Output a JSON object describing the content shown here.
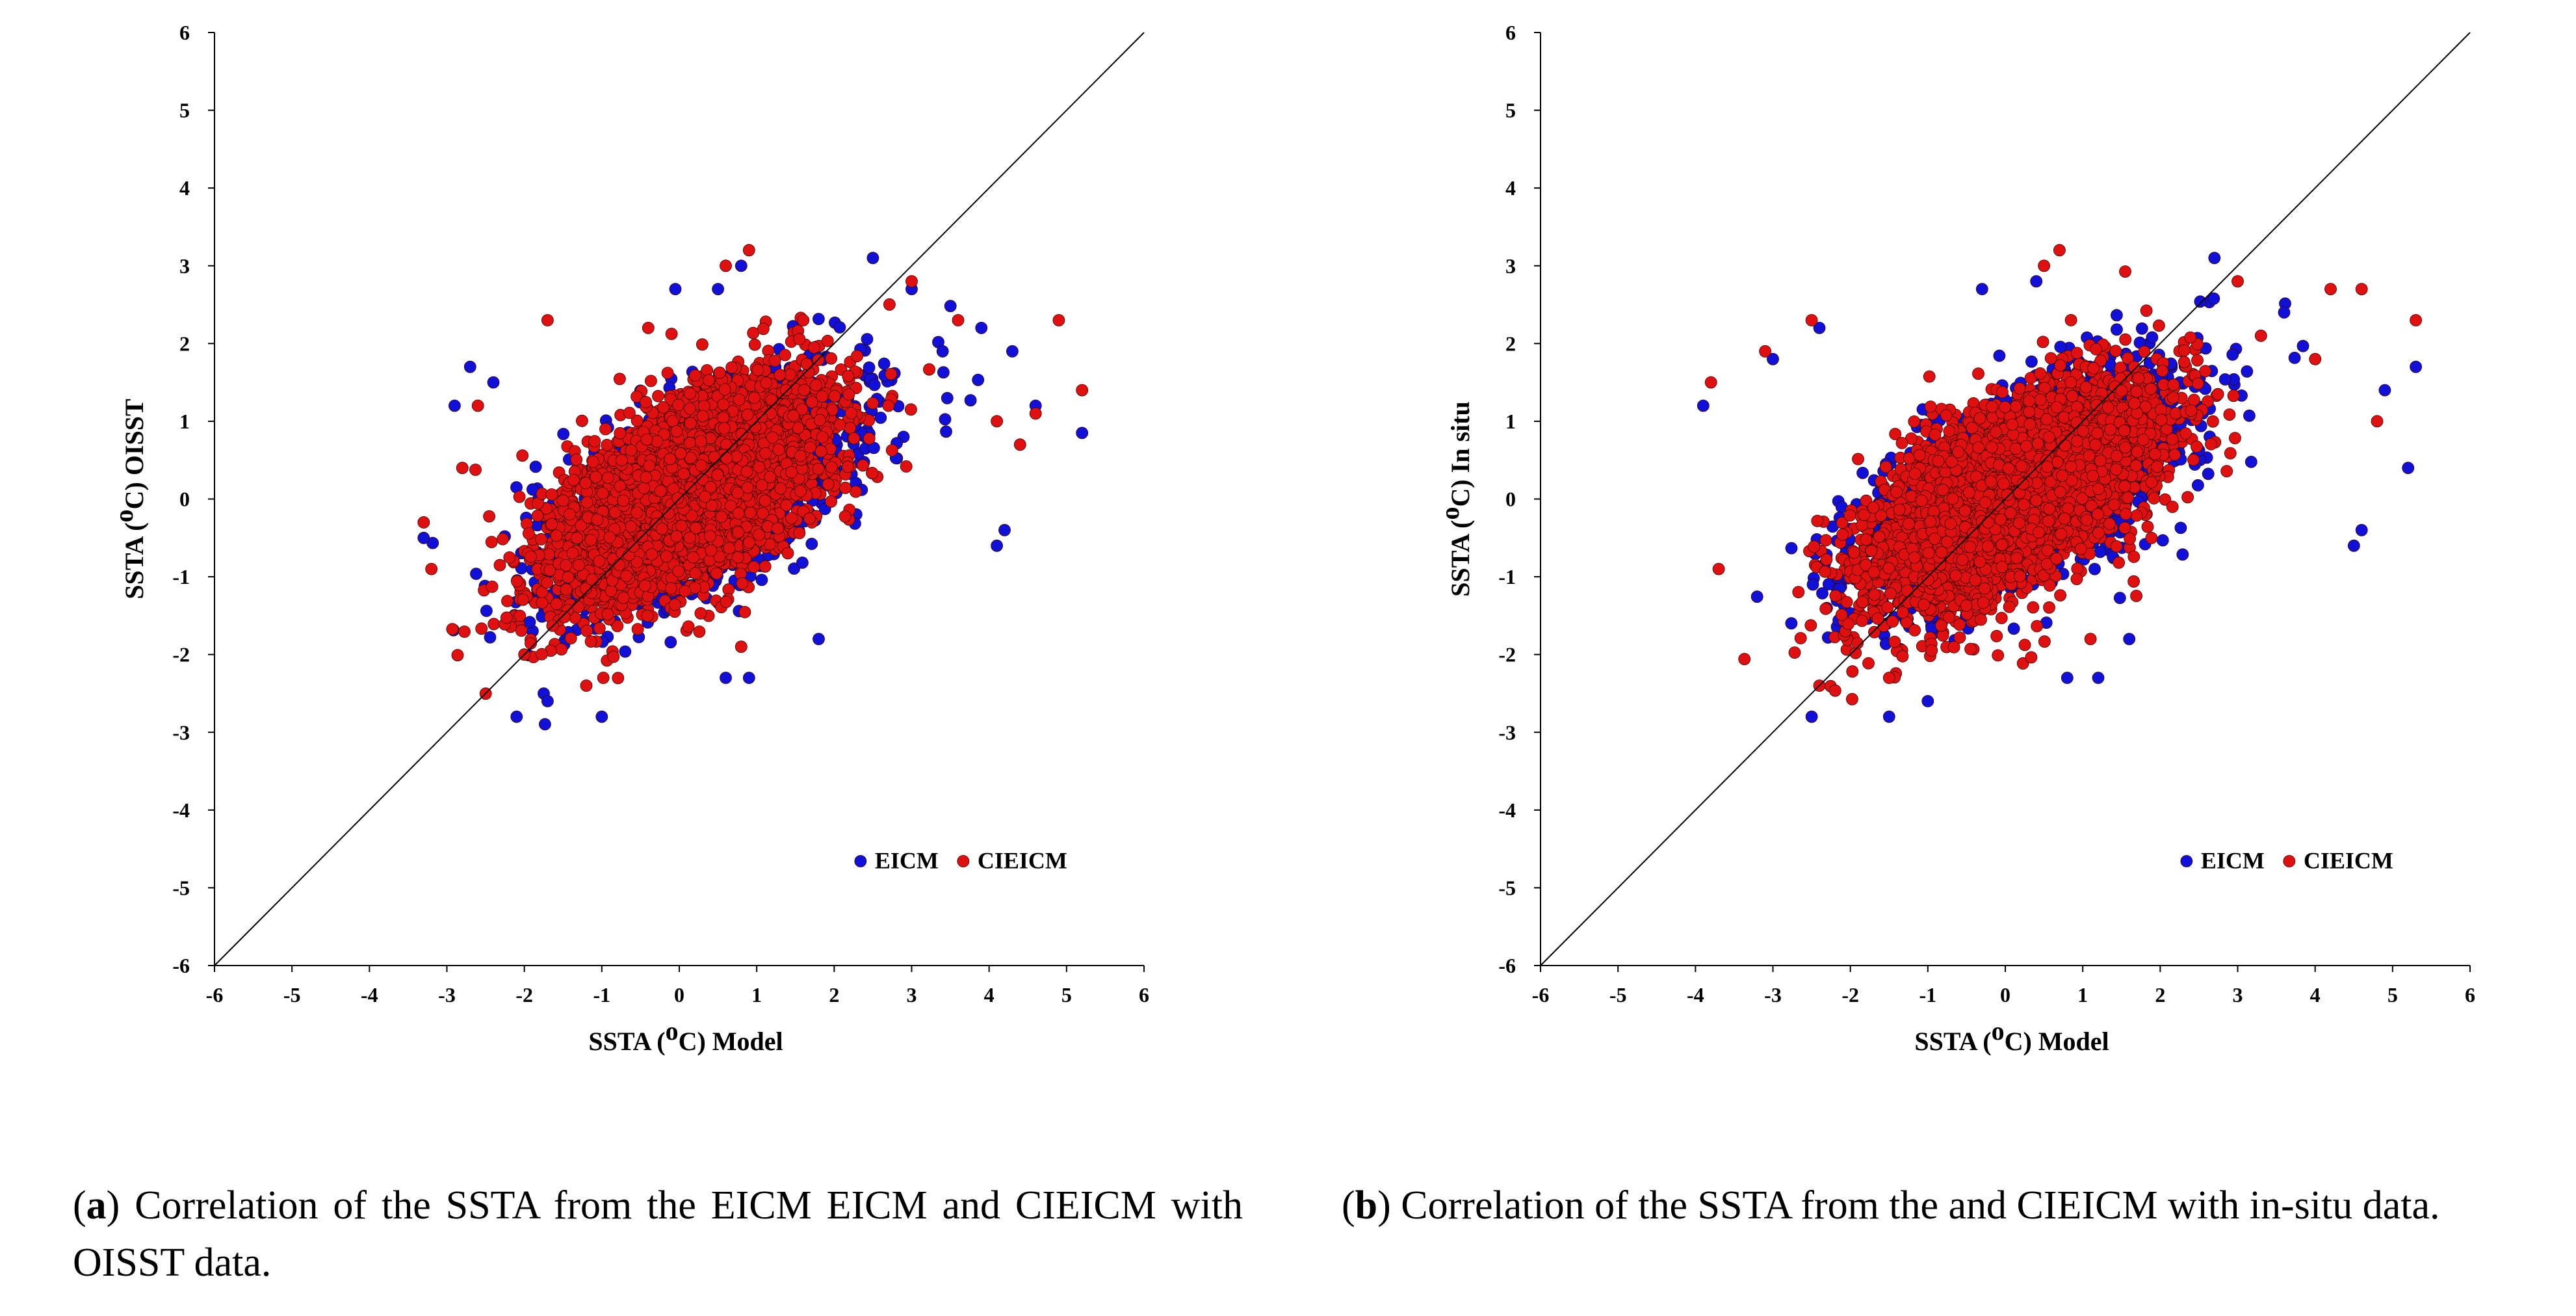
{
  "chart_data": [
    {
      "id": "a",
      "type": "scatter",
      "title": "",
      "xlabel_parts": [
        "SSTA (",
        "o",
        "C) Model"
      ],
      "ylabel_parts": [
        "SSTA (",
        "o",
        "C) OISST"
      ],
      "xlim": [
        -6,
        6
      ],
      "ylim": [
        -6,
        6
      ],
      "xticks": [
        "-6",
        "-5",
        "-4",
        "-3",
        "-2",
        "-1",
        "0",
        "1",
        "2",
        "3",
        "4",
        "5",
        "6"
      ],
      "yticks": [
        "-6",
        "-5",
        "-4",
        "-3",
        "-2",
        "-1",
        "0",
        "1",
        "2",
        "3",
        "4",
        "5",
        "6"
      ],
      "grid": false,
      "reference_line": {
        "x": [
          -6,
          6
        ],
        "y": [
          -6,
          6
        ]
      },
      "legend_position": "bottom-right",
      "series": [
        {
          "name": "EICM",
          "color": "#1010d8",
          "cluster": {
            "center": [
              0.3,
              0.1
            ],
            "slope": 0.62,
            "sd_along": 1.05,
            "sd_across": 0.48,
            "count": 2600
          },
          "points": [
            [
              -3.3,
              -0.5
            ],
            [
              -2.7,
              1.7
            ],
            [
              -2.9,
              1.2
            ],
            [
              -2.1,
              -2.8
            ],
            [
              -1.7,
              -2.6
            ],
            [
              -1.0,
              -2.8
            ],
            [
              2.5,
              3.1
            ],
            [
              0.8,
              3.0
            ],
            [
              -0.05,
              2.7
            ],
            [
              0.5,
              2.7
            ],
            [
              4.1,
              -0.6
            ],
            [
              4.2,
              -0.4
            ],
            [
              5.2,
              0.85
            ],
            [
              4.6,
              1.2
            ],
            [
              3.9,
              2.2
            ],
            [
              4.3,
              1.9
            ],
            [
              0.6,
              -2.3
            ],
            [
              0.9,
              -2.3
            ],
            [
              1.8,
              -1.8
            ],
            [
              -2.4,
              1.5
            ],
            [
              3.0,
              2.7
            ],
            [
              3.4,
              1.9
            ]
          ]
        },
        {
          "name": "CIEICM",
          "color": "#e01010",
          "cluster": {
            "center": [
              0.1,
              0.05
            ],
            "slope": 0.65,
            "sd_along": 1.0,
            "sd_across": 0.5,
            "count": 4200
          },
          "points": [
            [
              -3.3,
              -0.3
            ],
            [
              -3.2,
              -0.9
            ],
            [
              -2.6,
              1.2
            ],
            [
              -1.7,
              2.3
            ],
            [
              0.9,
              3.2
            ],
            [
              0.6,
              3.0
            ],
            [
              3.0,
              2.8
            ],
            [
              4.9,
              2.3
            ],
            [
              5.2,
              1.4
            ],
            [
              4.1,
              1.0
            ],
            [
              4.6,
              1.1
            ],
            [
              4.4,
              0.7
            ],
            [
              -2.0,
              -2.0
            ],
            [
              -1.2,
              -2.4
            ],
            [
              0.8,
              -1.9
            ],
            [
              2.7,
              1.2
            ],
            [
              3.6,
              2.3
            ],
            [
              -2.8,
              0.4
            ],
            [
              1.6,
              2.3
            ],
            [
              -0.4,
              2.2
            ]
          ]
        }
      ]
    },
    {
      "id": "b",
      "type": "scatter",
      "title": "",
      "xlabel_parts": [
        "SSTA (",
        "o",
        "C) Model"
      ],
      "ylabel_parts": [
        "SSTA (",
        "o",
        "C) In situ"
      ],
      "xlim": [
        -6,
        6
      ],
      "ylim": [
        -6,
        6
      ],
      "xticks": [
        "-6",
        "-5",
        "-4",
        "-3",
        "-2",
        "-1",
        "0",
        "1",
        "2",
        "3",
        "4",
        "5",
        "6"
      ],
      "yticks": [
        "-6",
        "-5",
        "-4",
        "-3",
        "-2",
        "-1",
        "0",
        "1",
        "2",
        "3",
        "4",
        "5",
        "6"
      ],
      "grid": false,
      "reference_line": {
        "x": [
          -6,
          6
        ],
        "y": [
          -6,
          6
        ]
      },
      "legend_position": "bottom-right",
      "series": [
        {
          "name": "EICM",
          "color": "#1010d8",
          "cluster": {
            "center": [
              0.2,
              0.1
            ],
            "slope": 0.6,
            "sd_along": 1.1,
            "sd_across": 0.5,
            "count": 2600
          },
          "points": [
            [
              -3.9,
              1.2
            ],
            [
              -3.0,
              1.8
            ],
            [
              -2.5,
              -2.8
            ],
            [
              -1.5,
              -2.8
            ],
            [
              -1.0,
              -2.6
            ],
            [
              2.7,
              3.1
            ],
            [
              0.4,
              2.8
            ],
            [
              -0.3,
              2.7
            ],
            [
              4.5,
              -0.6
            ],
            [
              4.6,
              -0.4
            ],
            [
              5.3,
              1.7
            ],
            [
              5.2,
              0.4
            ],
            [
              4.9,
              1.4
            ],
            [
              0.8,
              -2.3
            ],
            [
              1.2,
              -2.3
            ],
            [
              1.6,
              -1.8
            ],
            [
              3.6,
              2.4
            ],
            [
              -2.4,
              2.2
            ]
          ]
        },
        {
          "name": "CIEICM",
          "color": "#e01010",
          "cluster": {
            "center": [
              0.1,
              0.05
            ],
            "slope": 0.65,
            "sd_along": 1.05,
            "sd_across": 0.5,
            "count": 4200
          },
          "points": [
            [
              -3.8,
              1.5
            ],
            [
              -3.1,
              1.9
            ],
            [
              -3.7,
              -0.9
            ],
            [
              -2.5,
              2.3
            ],
            [
              0.5,
              3.0
            ],
            [
              0.7,
              3.2
            ],
            [
              3.0,
              2.8
            ],
            [
              5.3,
              2.3
            ],
            [
              4.6,
              2.7
            ],
            [
              4.8,
              1.0
            ],
            [
              4.0,
              1.8
            ],
            [
              -2.4,
              -2.4
            ],
            [
              -1.5,
              -2.3
            ],
            [
              1.1,
              -1.8
            ],
            [
              3.3,
              2.1
            ],
            [
              4.2,
              2.7
            ]
          ]
        }
      ]
    }
  ],
  "captions": [
    {
      "letter": "a",
      "text": " Correlation of the SSTA from the EICM EICM and CIEICM with OISST data."
    },
    {
      "letter": "b",
      "text": " Correlation of the SSTA from the and CIEICM with in-situ data."
    }
  ]
}
